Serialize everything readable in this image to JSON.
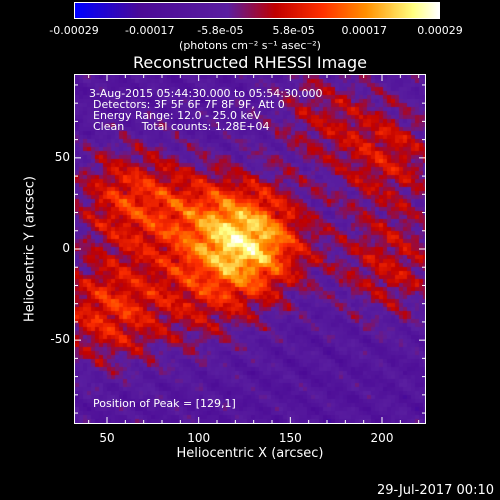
{
  "chart_data": {
    "type": "heatmap",
    "title": "Reconstructed RHESSI Image",
    "xlabel": "Heliocentric X (arcsec)",
    "ylabel": "Heliocentric Y (arcsec)",
    "xlim": [
      32,
      224
    ],
    "ylim": [
      -96,
      96
    ],
    "x_ticks": [
      50,
      100,
      150,
      200
    ],
    "x_tick_labels": [
      "50",
      "100",
      "150",
      "200"
    ],
    "y_ticks": [
      -50,
      0,
      50
    ],
    "y_tick_labels": [
      "-50",
      "0",
      "50"
    ],
    "colorbar": {
      "range": [
        -0.00029,
        0.00029
      ],
      "ticks": [
        -0.00029,
        -0.00017,
        -5.8e-05,
        5.8e-05,
        0.00017,
        0.00029
      ],
      "tick_labels": [
        "-0.00029",
        "-0.00017",
        "-5.8e-05",
        "5.8e-05",
        "0.00017",
        "0.00029"
      ],
      "units": "(photons cm⁻² s⁻¹ asec⁻²)",
      "colors": [
        "#0000ff",
        "#4b0a96",
        "#5a1ea0",
        "#c00000",
        "#ff3000",
        "#ff9000",
        "#ffff80",
        "#ffffff"
      ]
    },
    "peak": [
      129,
      1
    ],
    "sources": [
      {
        "x": 129,
        "y": 3,
        "amplitude": 0.00029
      },
      {
        "x": 60,
        "y": 28,
        "amplitude": 0.00017
      },
      {
        "x": 50,
        "y": -35,
        "amplitude": 0.00018
      },
      {
        "x": 100,
        "y": 18,
        "amplitude": 0.00012
      },
      {
        "x": 205,
        "y": 52,
        "amplitude": 0.00014
      },
      {
        "x": 205,
        "y": -10,
        "amplitude": 0.00014
      },
      {
        "x": 165,
        "y": 75,
        "amplitude": 0.0001
      },
      {
        "x": 100,
        "y": -30,
        "amplitude": 0.0001
      }
    ],
    "annotations": [
      "3-Aug-2015 05:44:30.000 to 05:54:30.000",
      "Detectors: 3F 5F 6F 7F 8F 9F, Att 0",
      "Energy Range: 12.0 - 25.0 keV",
      "Clean     Total counts: 1.28E+04",
      "Position of Peak = [129,1]"
    ]
  },
  "footer": {
    "date": "29-Jul-2017 00:10"
  }
}
